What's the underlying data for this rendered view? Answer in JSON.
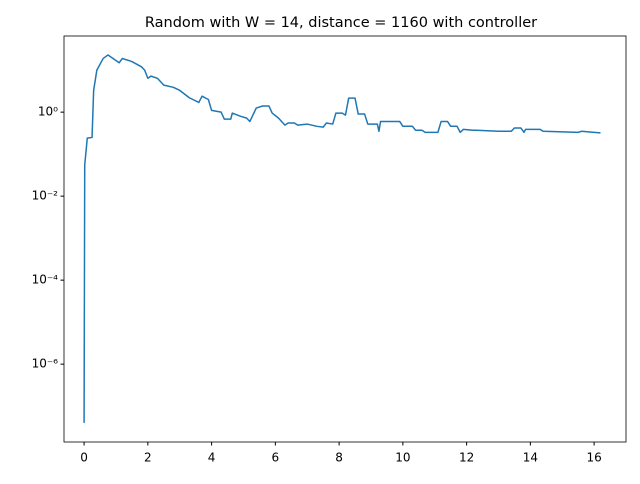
{
  "chart_data": {
    "type": "line",
    "title": "Random with W = 14, distance = 1160 with controller",
    "x": [
      0,
      0.02,
      0.1,
      0.25,
      0.3,
      0.4,
      0.6,
      0.75,
      1.0,
      1.1,
      1.2,
      1.5,
      1.8,
      1.9,
      2.0,
      2.1,
      2.3,
      2.5,
      2.8,
      3.0,
      3.3,
      3.6,
      3.7,
      3.9,
      4.0,
      4.3,
      4.4,
      4.6,
      4.65,
      4.9,
      5.1,
      5.2,
      5.4,
      5.6,
      5.8,
      5.9,
      6.1,
      6.3,
      6.4,
      6.6,
      6.7,
      7.0,
      7.3,
      7.5,
      7.6,
      7.8,
      7.9,
      8.1,
      8.2,
      8.3,
      8.5,
      8.6,
      8.8,
      8.9,
      9.2,
      9.25,
      9.3,
      9.9,
      10.0,
      10.3,
      10.4,
      10.6,
      10.7,
      11.1,
      11.2,
      11.4,
      11.5,
      11.7,
      11.8,
      11.9,
      12.2,
      12.3,
      13.0,
      13.4,
      13.5,
      13.7,
      13.8,
      13.85,
      14.3,
      14.4,
      15.5,
      15.6,
      16.0,
      16.2
    ],
    "series": [
      {
        "name": "controller",
        "color": "#1f77b4",
        "values": [
          4e-08,
          0.055,
          0.24,
          0.25,
          3.3,
          10,
          19,
          23,
          17,
          15,
          19,
          16,
          12,
          10,
          6.4,
          7.2,
          6.4,
          4.4,
          3.9,
          3.3,
          2.2,
          1.7,
          2.4,
          2.0,
          1.1,
          1.0,
          0.68,
          0.68,
          0.95,
          0.8,
          0.72,
          0.6,
          1.25,
          1.4,
          1.4,
          0.95,
          0.72,
          0.49,
          0.55,
          0.55,
          0.49,
          0.52,
          0.46,
          0.44,
          0.55,
          0.52,
          0.95,
          0.95,
          0.85,
          2.15,
          2.15,
          0.9,
          0.9,
          0.52,
          0.52,
          0.35,
          0.6,
          0.6,
          0.46,
          0.46,
          0.37,
          0.37,
          0.33,
          0.33,
          0.6,
          0.6,
          0.46,
          0.46,
          0.33,
          0.39,
          0.37,
          0.37,
          0.35,
          0.35,
          0.42,
          0.42,
          0.33,
          0.39,
          0.39,
          0.35,
          0.33,
          0.35,
          0.33,
          0.32
        ]
      }
    ],
    "xlim": [
      -0.63,
      17.0
    ],
    "xticks": [
      0,
      2,
      4,
      6,
      8,
      10,
      12,
      14,
      16
    ],
    "ylim": [
      1.4e-08,
      65
    ],
    "ylog": true,
    "yticks": [
      {
        "value": 1e-06,
        "label": "10⁻⁶"
      },
      {
        "value": 0.0001,
        "label": "10⁻⁴"
      },
      {
        "value": 0.01,
        "label": "10⁻²"
      },
      {
        "value": 1,
        "label": "10⁰"
      }
    ],
    "grid": false
  }
}
